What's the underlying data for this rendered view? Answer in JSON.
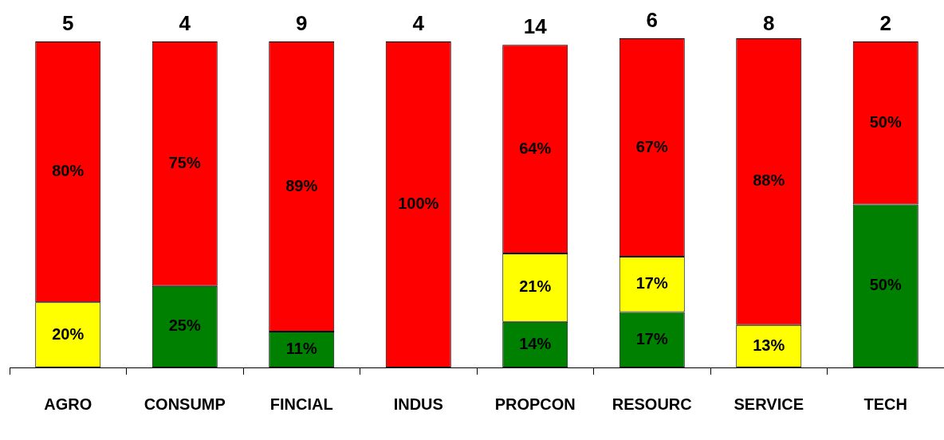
{
  "chart_data": {
    "type": "bar",
    "stacked": true,
    "categories": [
      "AGRO",
      "CONSUMP",
      "FINCIAL",
      "INDUS",
      "PROPCON",
      "RESOURC",
      "SERVICE",
      "TECH"
    ],
    "series": [
      {
        "color": "#008000",
        "values": [
          null,
          25,
          11,
          null,
          14,
          17,
          null,
          50
        ],
        "value_labels": [
          null,
          "25%",
          "11%",
          null,
          "14%",
          "17%",
          null,
          "50%"
        ]
      },
      {
        "color": "#ffff00",
        "values": [
          20,
          null,
          null,
          null,
          21,
          17,
          13,
          null
        ],
        "value_labels": [
          "20%",
          null,
          null,
          null,
          "21%",
          "17%",
          "13%",
          null
        ]
      },
      {
        "color": "#ff0000",
        "values": [
          80,
          75,
          89,
          100,
          64,
          67,
          88,
          50
        ],
        "value_labels": [
          "80%",
          "75%",
          "89%",
          "100%",
          "64%",
          "67%",
          "88%",
          "50%"
        ]
      }
    ],
    "annotations": [
      {
        "text": "5",
        "x": "AGRO",
        "y": 100
      },
      {
        "text": "4",
        "x": "CONSUMP",
        "y": 100
      },
      {
        "text": "9",
        "x": "FINCIAL",
        "y": 100
      },
      {
        "text": "4",
        "x": "INDUS",
        "y": 100
      },
      {
        "text": "14",
        "x": "PROPCON",
        "y": 99
      },
      {
        "text": "6",
        "x": "RESOURC",
        "y": 101
      },
      {
        "text": "8",
        "x": "SERVICE",
        "y": 100
      },
      {
        "text": "2",
        "x": "TECH",
        "y": 100
      }
    ],
    "ylim": [
      0,
      101
    ],
    "tick_labels": "x",
    "legend": false
  }
}
